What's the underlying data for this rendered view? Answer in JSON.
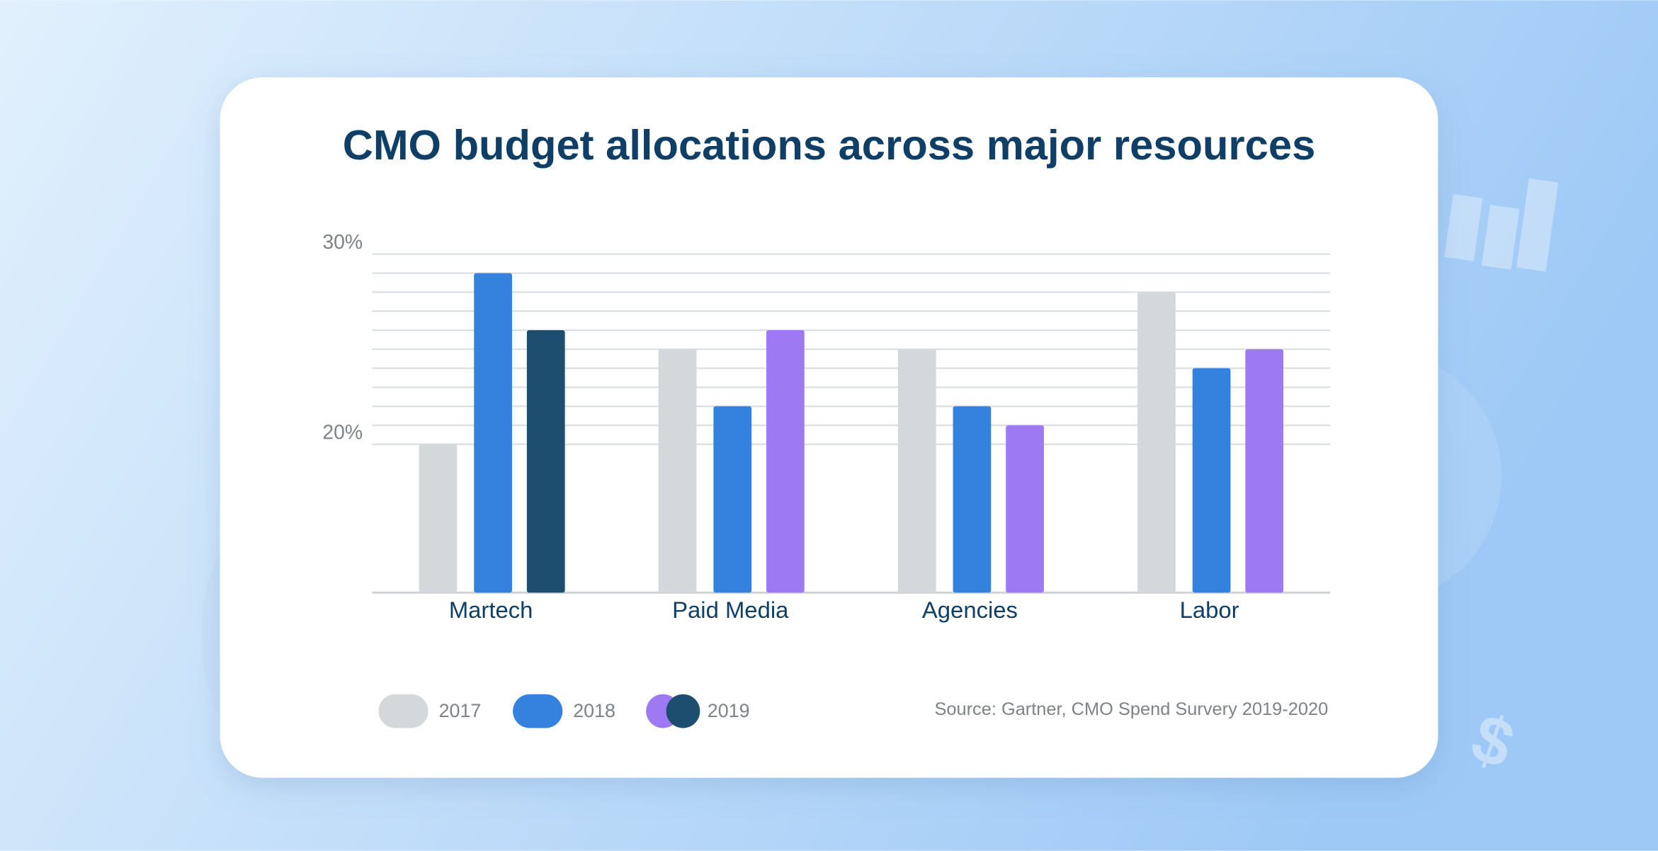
{
  "chart_data": {
    "type": "bar",
    "title": "CMO budget allocations across major resources",
    "categories": [
      "Martech",
      "Paid Media",
      "Agencies",
      "Labor"
    ],
    "series": [
      {
        "name": "2017",
        "color": "#d5d8db",
        "values": [
          20,
          25,
          25,
          28
        ]
      },
      {
        "name": "2018",
        "color": "#3582de",
        "values": [
          29,
          22,
          22,
          24
        ]
      },
      {
        "name": "2019",
        "color": "#9d7af3",
        "colors": [
          "#1d4e70",
          "#9d7af3",
          "#9d7af3",
          "#9d7af3"
        ],
        "values": [
          26,
          26,
          21,
          25
        ]
      }
    ],
    "ylim": [
      12.2,
      30
    ],
    "yticks": [
      {
        "value": 20,
        "label": "20%"
      },
      {
        "value": 30,
        "label": "30%"
      }
    ],
    "minor_grid": [
      21,
      22,
      23,
      24,
      25,
      26,
      27,
      28,
      29
    ],
    "grid": true,
    "legend": "bottom-left",
    "source": "Source: Gartner, CMO Spend Survery 2019-2020"
  }
}
